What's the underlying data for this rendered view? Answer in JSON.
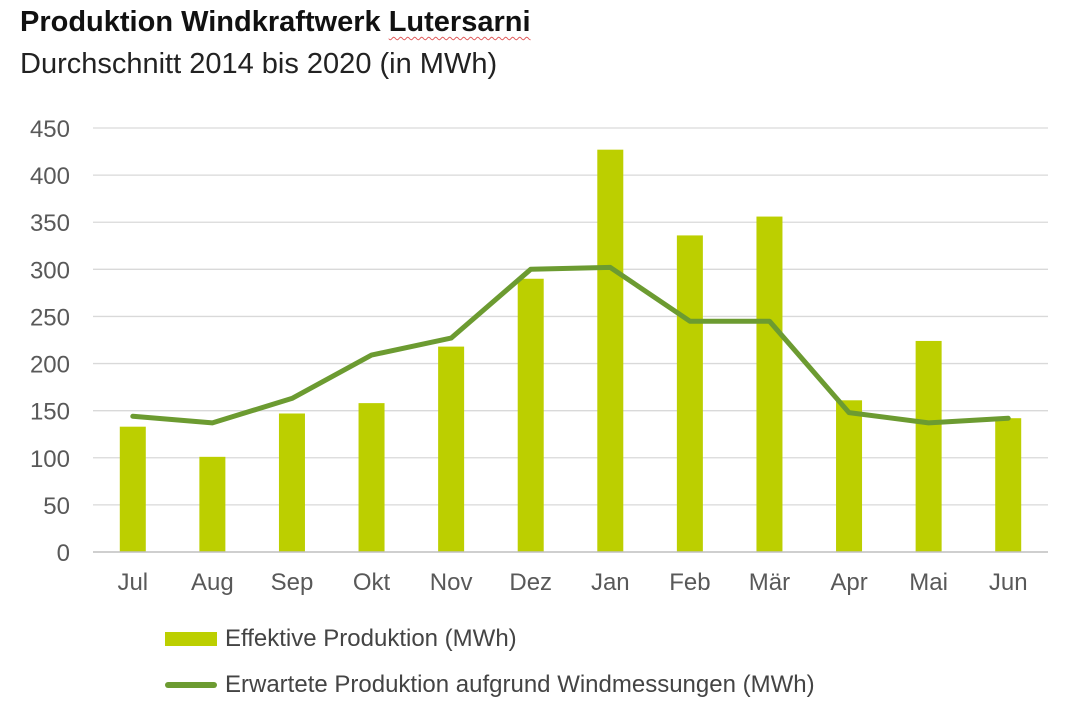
{
  "header": {
    "title_prefix": "Produktion Windkraftwerk ",
    "title_highlight": "Lutersarni",
    "subtitle": "Durchschnitt 2014 bis 2020 (in MWh)"
  },
  "colors": {
    "bar": "#bccf00",
    "line": "#6c9b31",
    "grid": "#d9d9d9",
    "axis": "#bfbfbf",
    "tick_text": "#595959"
  },
  "chart_data": {
    "type": "bar",
    "title": "Produktion Windkraftwerk Lutersarni",
    "subtitle": "Durchschnitt 2014 bis 2020 (in MWh)",
    "categories": [
      "Jul",
      "Aug",
      "Sep",
      "Okt",
      "Nov",
      "Dez",
      "Jan",
      "Feb",
      "Mär",
      "Apr",
      "Mai",
      "Jun"
    ],
    "ylim": [
      0,
      450
    ],
    "yticks": [
      0,
      50,
      100,
      150,
      200,
      250,
      300,
      350,
      400,
      450
    ],
    "grid": true,
    "legend_position": "bottom",
    "series": [
      {
        "name": "Effektive Produktion (MWh)",
        "kind": "bar",
        "values": [
          133,
          101,
          147,
          158,
          218,
          290,
          427,
          336,
          356,
          161,
          224,
          142
        ]
      },
      {
        "name": "Erwartete Produktion aufgrund Windmessungen (MWh)",
        "kind": "line",
        "values": [
          144,
          137,
          163,
          209,
          227,
          300,
          302,
          245,
          245,
          148,
          137,
          142
        ]
      }
    ]
  }
}
